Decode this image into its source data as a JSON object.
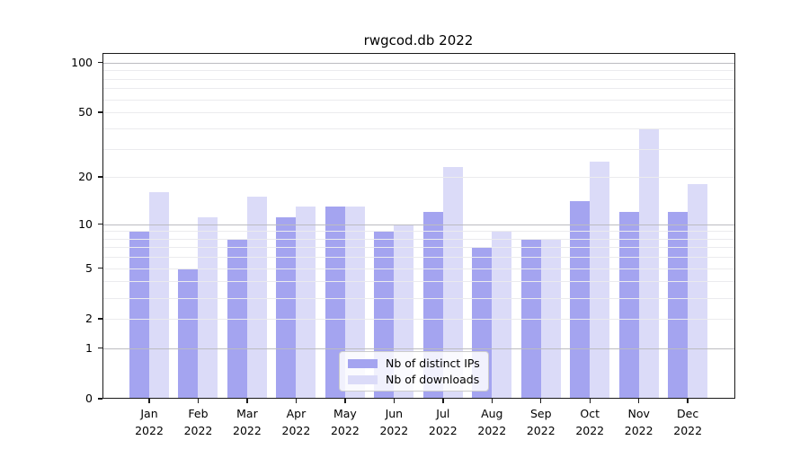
{
  "figure_title": "rwgcod.db 2022",
  "chart_data": {
    "type": "bar",
    "title": "rwgcod.db 2022",
    "categories": [
      "Jan 2022",
      "Feb 2022",
      "Mar 2022",
      "Apr 2022",
      "May 2022",
      "Jun 2022",
      "Jul 2022",
      "Aug 2022",
      "Sep 2022",
      "Oct 2022",
      "Nov 2022",
      "Dec 2022"
    ],
    "series": [
      {
        "name": "Nb of distinct IPs",
        "color": "#a4a4f0",
        "values": [
          9,
          5,
          8,
          11,
          13,
          9,
          12,
          7,
          8,
          14,
          12,
          12
        ]
      },
      {
        "name": "Nb of downloads",
        "color": "#dbdbf8",
        "values": [
          16,
          11,
          15,
          13,
          13,
          10,
          23,
          9,
          8,
          25,
          40,
          18
        ]
      }
    ],
    "xlabel": "",
    "ylabel": "",
    "y_scale": "log1p",
    "y_ticks": [
      0,
      1,
      2,
      5,
      10,
      20,
      50,
      100
    ],
    "y_minor_gridlines": [
      2,
      3,
      4,
      5,
      6,
      7,
      8,
      9,
      20,
      30,
      40,
      50,
      60,
      70,
      80,
      90
    ],
    "y_major_gridlines": [
      1,
      10,
      100
    ],
    "ylim": [
      0,
      115
    ],
    "grid": true,
    "legend_position": "lower center",
    "colors": {
      "grid_minor": "#ebebee",
      "grid_major": "#bcbcc1",
      "spine": "#1a1a1a",
      "background": "#ffffff"
    }
  }
}
